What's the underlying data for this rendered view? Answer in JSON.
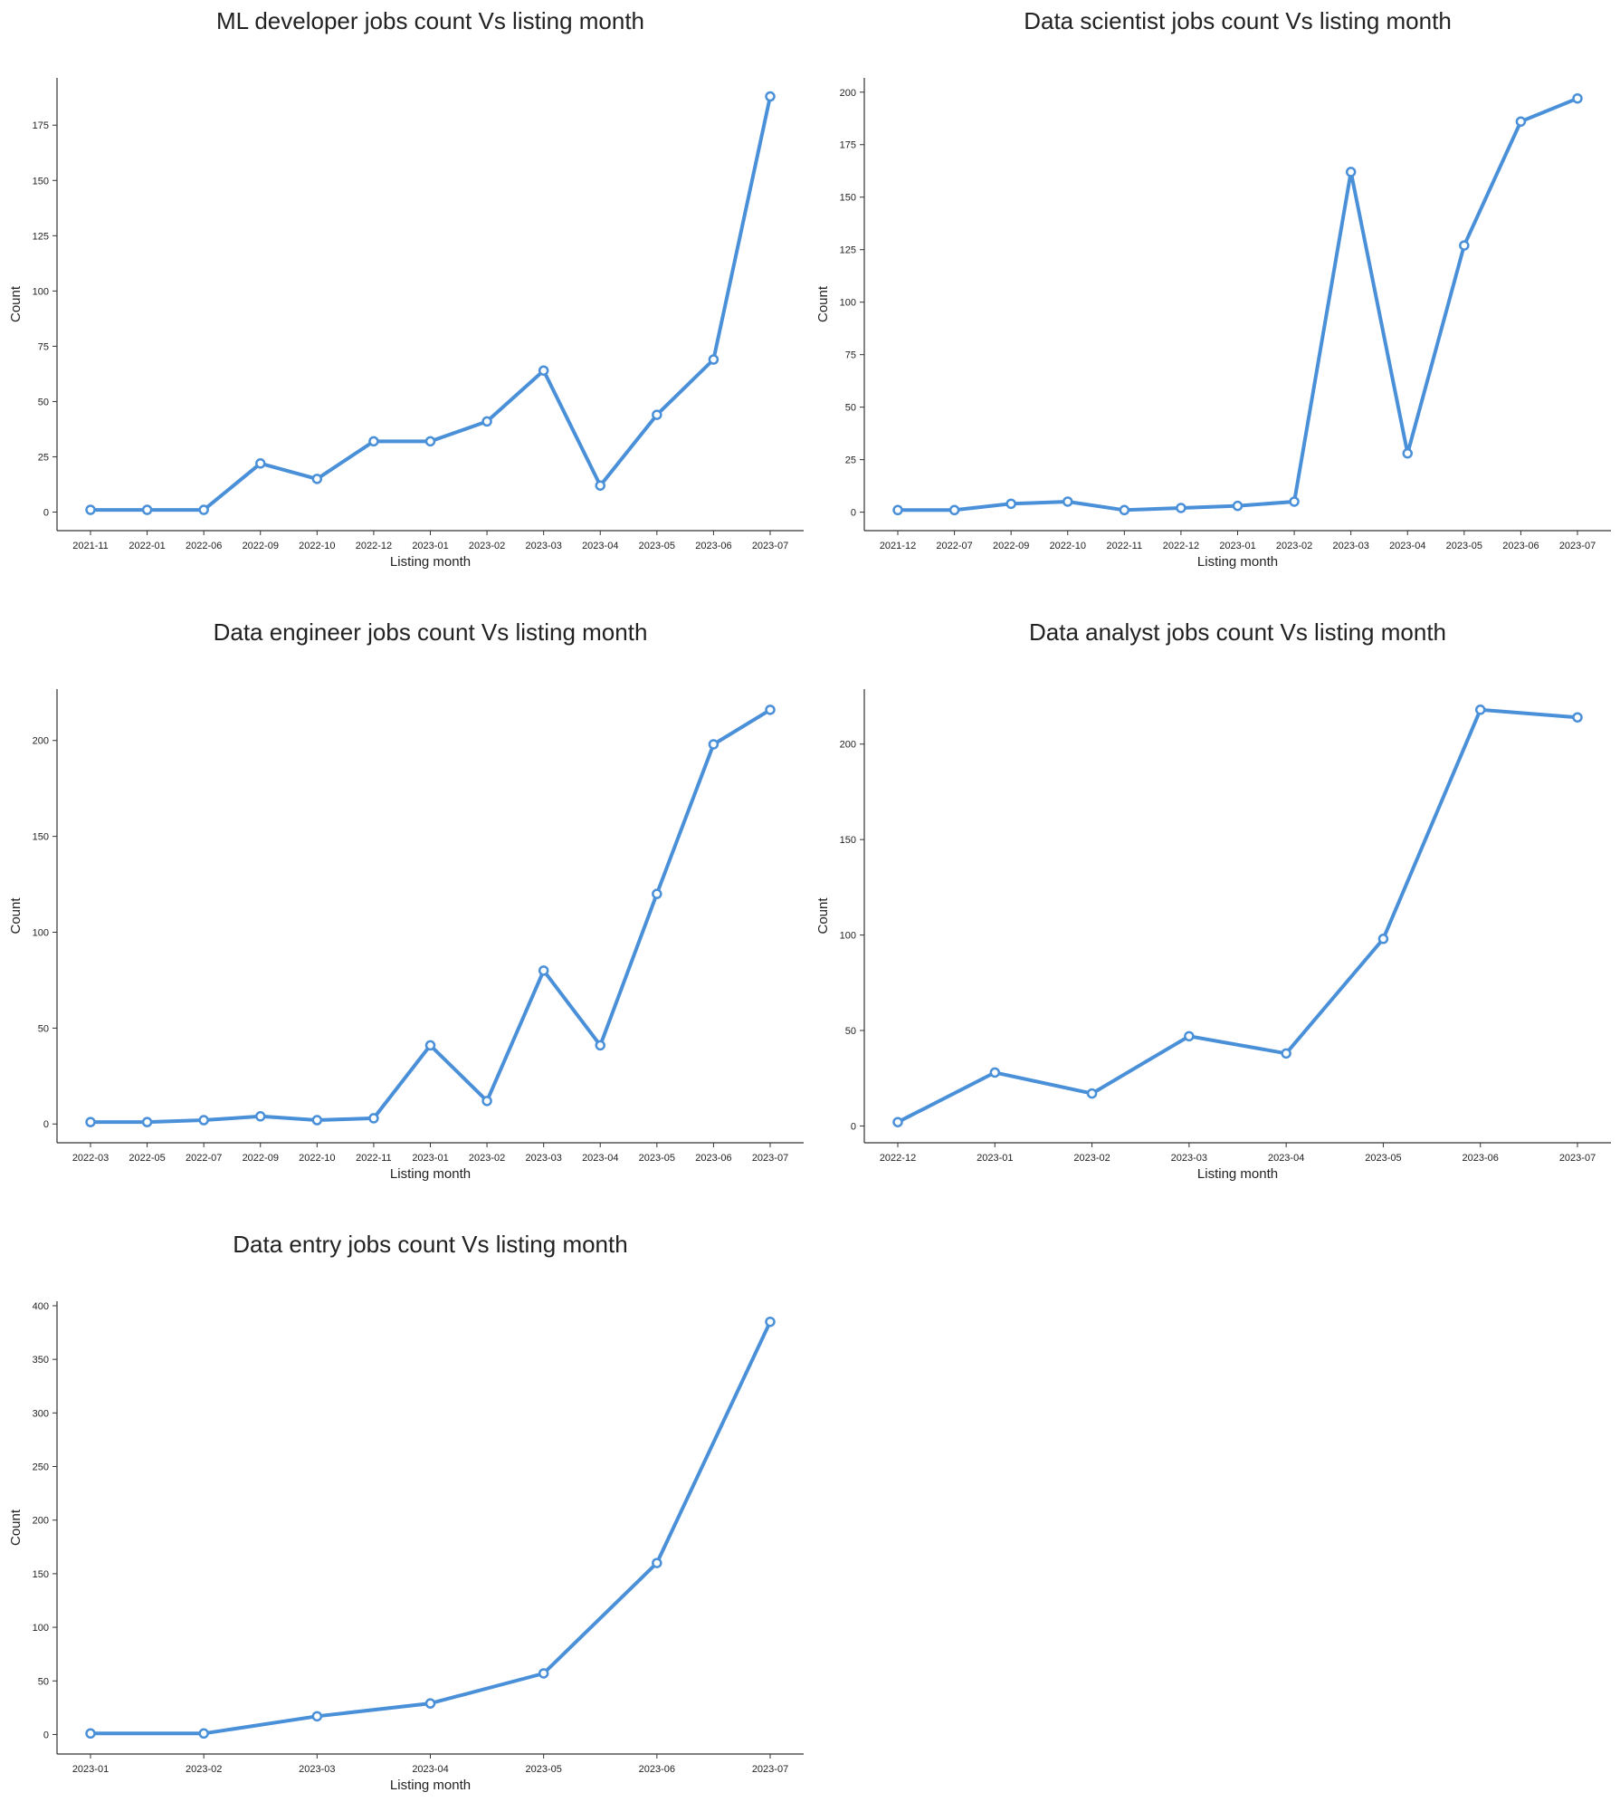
{
  "style": {
    "line_color": "#4a90d9",
    "axis_color": "#333333",
    "marker_fill": "#ffffff"
  },
  "chart_data": [
    {
      "type": "line",
      "title": "ML developer jobs count Vs listing month",
      "xlabel": "Listing month",
      "ylabel": "Count",
      "categories": [
        "2021-11",
        "2022-01",
        "2022-06",
        "2022-09",
        "2022-10",
        "2022-12",
        "2023-01",
        "2023-02",
        "2023-03",
        "2023-04",
        "2023-05",
        "2023-06",
        "2023-07"
      ],
      "values": [
        1,
        1,
        1,
        22,
        15,
        32,
        32,
        41,
        64,
        12,
        44,
        69,
        188
      ],
      "yticks": [
        0,
        25,
        50,
        75,
        100,
        125,
        150,
        175
      ],
      "ylim": [
        -8.4,
        196.4
      ],
      "grid": false,
      "legend": "none"
    },
    {
      "type": "line",
      "title": "Data scientist jobs count Vs listing month",
      "xlabel": "Listing month",
      "ylabel": "Count",
      "categories": [
        "2021-12",
        "2022-07",
        "2022-09",
        "2022-10",
        "2022-11",
        "2022-12",
        "2023-01",
        "2023-02",
        "2023-03",
        "2023-04",
        "2023-05",
        "2023-06",
        "2023-07"
      ],
      "values": [
        1,
        1,
        4,
        5,
        1,
        2,
        3,
        5,
        162,
        28,
        127,
        186,
        197
      ],
      "yticks": [
        0,
        25,
        50,
        75,
        100,
        125,
        150,
        175,
        200
      ],
      "ylim": [
        -8.8,
        206.8
      ],
      "grid": false,
      "legend": "none"
    },
    {
      "type": "line",
      "title": "Data engineer jobs count Vs listing month",
      "xlabel": "Listing month",
      "ylabel": "Count",
      "categories": [
        "2022-03",
        "2022-05",
        "2022-07",
        "2022-09",
        "2022-10",
        "2022-11",
        "2023-01",
        "2023-02",
        "2023-03",
        "2023-04",
        "2023-05",
        "2023-06",
        "2023-07"
      ],
      "values": [
        1,
        1,
        2,
        4,
        2,
        3,
        41,
        12,
        80,
        41,
        120,
        198,
        216
      ],
      "yticks": [
        0,
        50,
        100,
        150,
        200
      ],
      "ylim": [
        -9.8,
        226.8
      ],
      "grid": false,
      "legend": "none"
    },
    {
      "type": "line",
      "title": "Data analyst jobs count Vs listing month",
      "xlabel": "Listing month",
      "ylabel": "Count",
      "categories": [
        "2022-12",
        "2023-01",
        "2023-02",
        "2023-03",
        "2023-04",
        "2023-05",
        "2023-06",
        "2023-07"
      ],
      "values": [
        2,
        28,
        17,
        47,
        38,
        98,
        218,
        214
      ],
      "yticks": [
        0,
        50,
        100,
        150,
        200
      ],
      "ylim": [
        -8.8,
        228.8
      ],
      "grid": false,
      "legend": "none"
    },
    {
      "type": "line",
      "title": "Data entry jobs count Vs listing month",
      "xlabel": "Listing month",
      "ylabel": "Count",
      "categories": [
        "2023-01",
        "2023-02",
        "2023-03",
        "2023-04",
        "2023-05",
        "2023-06",
        "2023-07"
      ],
      "values": [
        1,
        1,
        17,
        29,
        57,
        160,
        385
      ],
      "yticks": [
        0,
        50,
        100,
        150,
        200,
        250,
        300,
        350,
        400
      ],
      "ylim": [
        -18.2,
        404.2
      ],
      "grid": false,
      "legend": "none"
    }
  ]
}
